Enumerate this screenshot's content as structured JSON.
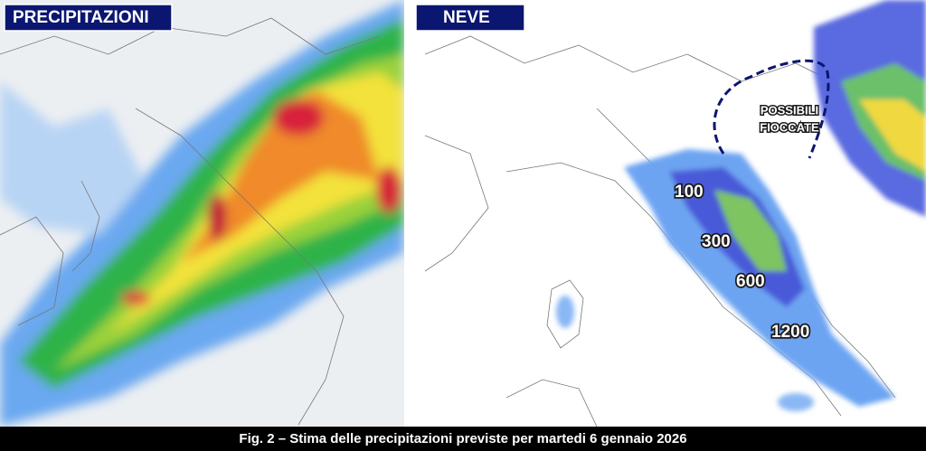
{
  "panels": [
    {
      "title": "PRECIPITAZIONI"
    },
    {
      "title": "NEVE",
      "annotation": [
        "POSSIBILI",
        "FIOCCATE"
      ],
      "snow_levels": [
        "100",
        "300",
        "600",
        "1200"
      ]
    }
  ],
  "caption": "Fig. 2 – Stima delle precipitazioni previste per martedi 6 gennaio 2026"
}
